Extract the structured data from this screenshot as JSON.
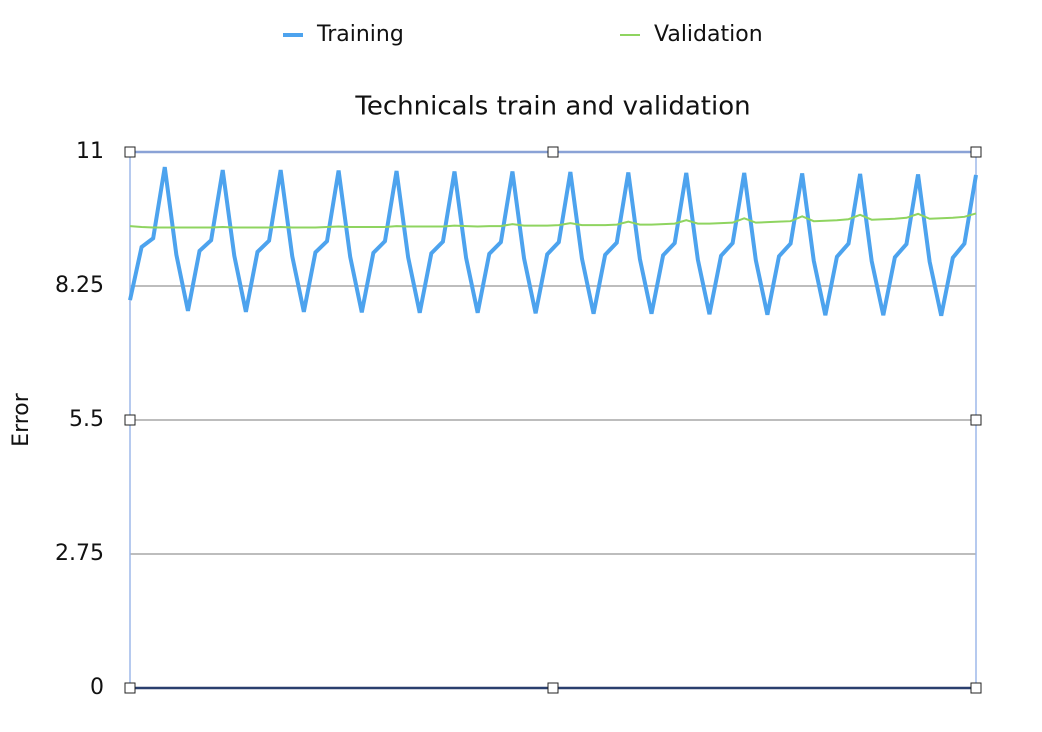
{
  "chart_data": {
    "type": "line",
    "title": "Technicals train and validation",
    "y_label": "Error",
    "ylim": [
      0,
      11
    ],
    "yticks": [
      0,
      2.75,
      5.5,
      8.25,
      11
    ],
    "grid": true,
    "legend": "top",
    "series": [
      {
        "name": "Training",
        "color": "#4da3ee",
        "values": [
          7.96,
          9.05,
          9.23,
          10.69,
          8.89,
          7.74,
          8.97,
          9.19,
          10.63,
          8.87,
          7.72,
          8.95,
          9.18,
          10.63,
          8.86,
          7.72,
          8.94,
          9.17,
          10.62,
          8.85,
          7.71,
          8.93,
          9.17,
          10.61,
          8.84,
          7.7,
          8.92,
          9.16,
          10.6,
          8.83,
          7.7,
          8.91,
          9.15,
          10.6,
          8.82,
          7.69,
          8.9,
          9.15,
          10.59,
          8.81,
          7.68,
          8.89,
          9.14,
          10.58,
          8.8,
          7.68,
          8.88,
          9.13,
          10.57,
          8.79,
          7.67,
          8.87,
          9.13,
          10.57,
          8.78,
          7.66,
          8.86,
          9.12,
          10.56,
          8.77,
          7.65,
          8.85,
          9.12,
          10.55,
          8.76,
          7.65,
          8.84,
          9.11,
          10.54,
          8.75,
          7.64,
          8.83,
          9.12,
          10.53
        ]
      },
      {
        "name": "Validation",
        "color": "#8fd460",
        "values": [
          9.48,
          9.46,
          9.45,
          9.45,
          9.45,
          9.45,
          9.45,
          9.45,
          9.46,
          9.45,
          9.45,
          9.45,
          9.45,
          9.46,
          9.45,
          9.45,
          9.45,
          9.46,
          9.47,
          9.46,
          9.46,
          9.46,
          9.46,
          9.48,
          9.47,
          9.47,
          9.47,
          9.47,
          9.49,
          9.48,
          9.47,
          9.48,
          9.48,
          9.52,
          9.49,
          9.49,
          9.49,
          9.5,
          9.54,
          9.5,
          9.5,
          9.5,
          9.51,
          9.57,
          9.51,
          9.51,
          9.52,
          9.53,
          9.6,
          9.53,
          9.53,
          9.54,
          9.55,
          9.64,
          9.55,
          9.56,
          9.57,
          9.58,
          9.68,
          9.58,
          9.59,
          9.6,
          9.62,
          9.71,
          9.61,
          9.62,
          9.63,
          9.65,
          9.73,
          9.63,
          9.64,
          9.65,
          9.67,
          9.74
        ]
      }
    ]
  }
}
